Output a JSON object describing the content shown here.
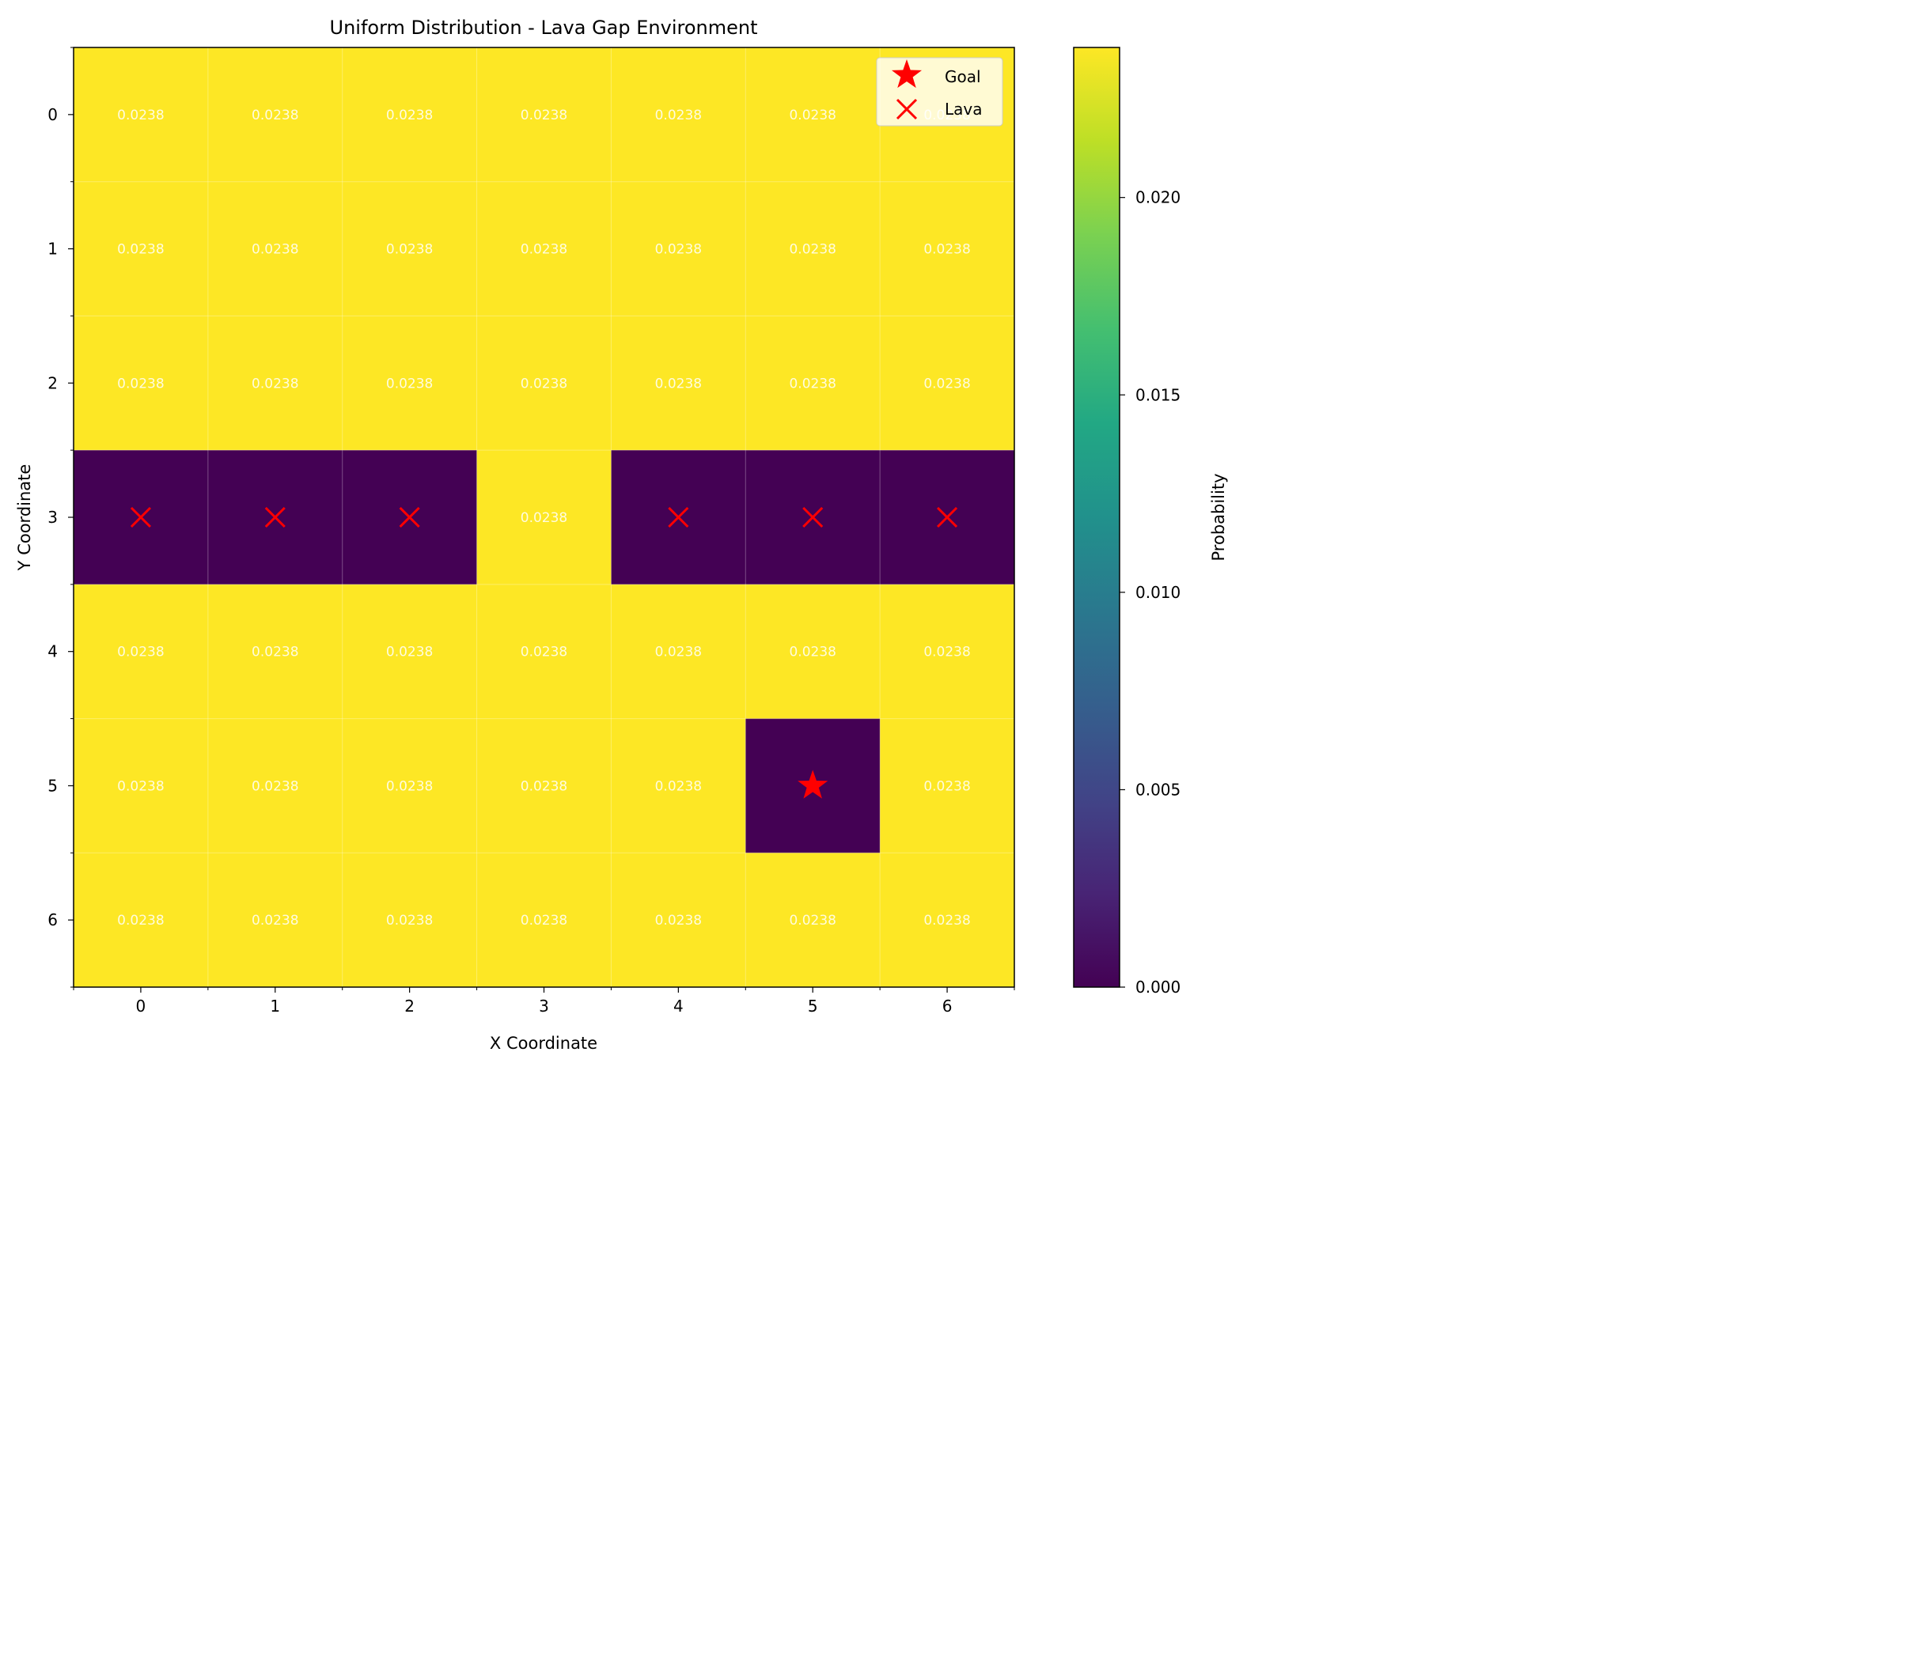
{
  "chart_data": {
    "type": "heatmap",
    "title": "Uniform Distribution - Lava Gap Environment",
    "xlabel": "X Coordinate",
    "ylabel": "Y Coordinate",
    "x_ticks": [
      "0",
      "1",
      "2",
      "3",
      "4",
      "5",
      "6"
    ],
    "y_ticks": [
      "0",
      "1",
      "2",
      "3",
      "4",
      "5",
      "6"
    ],
    "colormap": "viridis",
    "colorbar": {
      "label": "Probability",
      "range": [
        0,
        0.0238
      ],
      "ticks": [
        "0.000",
        "0.005",
        "0.010",
        "0.015",
        "0.020"
      ],
      "tick_values": [
        0,
        0.005,
        0.01,
        0.015,
        0.02
      ]
    },
    "values": [
      [
        0.0238,
        0.0238,
        0.0238,
        0.0238,
        0.0238,
        0.0238,
        0.0238
      ],
      [
        0.0238,
        0.0238,
        0.0238,
        0.0238,
        0.0238,
        0.0238,
        0.0238
      ],
      [
        0.0238,
        0.0238,
        0.0238,
        0.0238,
        0.0238,
        0.0238,
        0.0238
      ],
      [
        0,
        0,
        0,
        0.0238,
        0,
        0,
        0
      ],
      [
        0.0238,
        0.0238,
        0.0238,
        0.0238,
        0.0238,
        0.0238,
        0.0238
      ],
      [
        0.0238,
        0.0238,
        0.0238,
        0.0238,
        0.0238,
        0,
        0.0238
      ],
      [
        0.0238,
        0.0238,
        0.0238,
        0.0238,
        0.0238,
        0.0238,
        0.0238
      ]
    ],
    "cell_label": "0.0238",
    "goal": {
      "x": 5,
      "y": 5
    },
    "lava": [
      {
        "x": 0,
        "y": 3
      },
      {
        "x": 1,
        "y": 3
      },
      {
        "x": 2,
        "y": 3
      },
      {
        "x": 4,
        "y": 3
      },
      {
        "x": 5,
        "y": 3
      },
      {
        "x": 6,
        "y": 3
      }
    ],
    "legend": {
      "placement": "top-right",
      "entries": [
        {
          "label": "Goal",
          "marker": "star",
          "color": "#ff0000"
        },
        {
          "label": "Lava",
          "marker": "x",
          "color": "#ff0000"
        }
      ]
    },
    "grid": true
  }
}
